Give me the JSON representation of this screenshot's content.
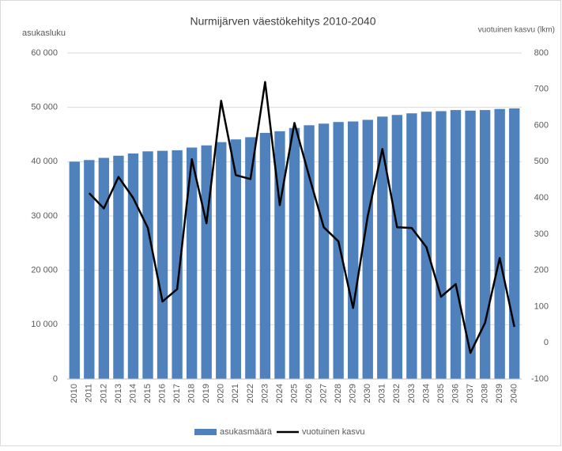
{
  "chart_data": {
    "type": "bar",
    "title": "Nurmijärven väestökehitys 2010-2040",
    "y_label": "asukasluku",
    "y2_label": "vuotuinen kasvu (lkm)",
    "categories": [
      "2010",
      "2011",
      "2012",
      "2013",
      "2014",
      "2015",
      "2016",
      "2017",
      "2018",
      "2019",
      "2020",
      "2021",
      "2022",
      "2023",
      "2024",
      "2025",
      "2026",
      "2027",
      "2028",
      "2029",
      "2030",
      "2031",
      "2032",
      "2033",
      "2034",
      "2035",
      "2036",
      "2037",
      "2038",
      "2039",
      "2040"
    ],
    "series": [
      {
        "name": "asukasmäärä",
        "color": "#4f81bd",
        "values": [
          40000,
          40300,
          40700,
          41100,
          41500,
          41900,
          42000,
          42100,
          42600,
          43000,
          43600,
          44100,
          44500,
          45300,
          45600,
          46200,
          46700,
          47000,
          47300,
          47400,
          47700,
          48300,
          48600,
          48900,
          49200,
          49300,
          49500,
          49400,
          49500,
          49700,
          49800
        ]
      },
      {
        "name": "vuotuinen kasvu",
        "color": "#000000",
        "axis": "y2",
        "values": [
          null,
          413,
          371,
          458,
          400,
          317,
          114,
          148,
          507,
          330,
          668,
          463,
          452,
          720,
          380,
          607,
          460,
          319,
          280,
          96,
          350,
          535,
          319,
          317,
          264,
          127,
          162,
          -28,
          55,
          234,
          44
        ]
      }
    ],
    "ylim": [
      0,
      60000
    ],
    "yticks": [
      0,
      {
        "value": 10000,
        "label": "10 000"
      },
      {
        "value": 20000,
        "label": "20 000"
      },
      {
        "value": 30000,
        "label": "30 000"
      },
      {
        "value": 40000,
        "label": "40 000"
      },
      {
        "value": 50000,
        "label": "50 000"
      },
      {
        "value": 60000,
        "label": "60 000"
      }
    ],
    "y2lim": [
      -100,
      800
    ],
    "y2ticks": [
      -100,
      0,
      100,
      200,
      300,
      400,
      500,
      600,
      700,
      800
    ],
    "grid": true,
    "legend": "bottom"
  }
}
